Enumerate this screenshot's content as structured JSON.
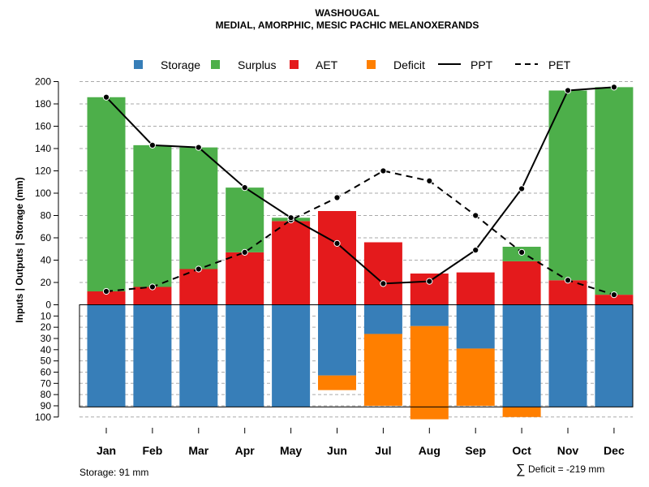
{
  "chart_data": {
    "type": "bar",
    "title": "WASHOUGAL",
    "subtitle": "MEDIAL, AMORPHIC, MESIC PACHIC MELANOXERANDS",
    "ylabel": "Inputs | Outputs | Storage    (mm)",
    "ylim_top": [
      0,
      200
    ],
    "ylim_bottom": [
      0,
      100
    ],
    "top_ticks": [
      "200",
      "180",
      "160",
      "140",
      "120",
      "100",
      "80",
      "60",
      "40",
      "20",
      "0"
    ],
    "top_tick_values": [
      200,
      180,
      160,
      140,
      120,
      100,
      80,
      60,
      40,
      20,
      0
    ],
    "bottom_ticks": [
      "10",
      "20",
      "30",
      "40",
      "50",
      "60",
      "70",
      "80",
      "90",
      "100"
    ],
    "bottom_tick_values": [
      10,
      20,
      30,
      40,
      50,
      60,
      70,
      80,
      90,
      100
    ],
    "categories": [
      "Jan",
      "Feb",
      "Mar",
      "Apr",
      "May",
      "Jun",
      "Jul",
      "Aug",
      "Sep",
      "Oct",
      "Nov",
      "Dec"
    ],
    "legend": [
      "Storage",
      "Surplus",
      "AET",
      "Deficit",
      "PPT",
      "PET"
    ],
    "colors": {
      "storage": "#377eb8",
      "surplus": "#4daf4a",
      "aet": "#e41a1c",
      "deficit": "#ff7f00",
      "line": "#000000"
    },
    "series": [
      {
        "name": "AET",
        "values": [
          12,
          16,
          32,
          47,
          75,
          84,
          56,
          28,
          29,
          39,
          22,
          9
        ]
      },
      {
        "name": "Surplus",
        "values": [
          174,
          127,
          109,
          58,
          3,
          0,
          0,
          0,
          0,
          13,
          170,
          186
        ]
      },
      {
        "name": "Storage",
        "values": [
          91,
          91,
          91,
          91,
          91,
          63,
          26,
          19,
          39,
          91,
          91,
          91
        ]
      },
      {
        "name": "Deficit",
        "values": [
          0,
          0,
          0,
          0,
          0,
          13,
          64,
          83,
          51,
          9,
          0,
          0
        ]
      },
      {
        "name": "PPT",
        "values": [
          186,
          143,
          141,
          105,
          78,
          55,
          19,
          21,
          49,
          104,
          192,
          195
        ]
      },
      {
        "name": "PET",
        "values": [
          12,
          16,
          32,
          47,
          76,
          96,
          120,
          111,
          80,
          47,
          22,
          9
        ]
      }
    ],
    "storage_capacity": 91,
    "footer_storage": "Storage: 91 mm",
    "footer_deficit_symbol": "∑",
    "footer_deficit": "Deficit = -219 mm"
  }
}
